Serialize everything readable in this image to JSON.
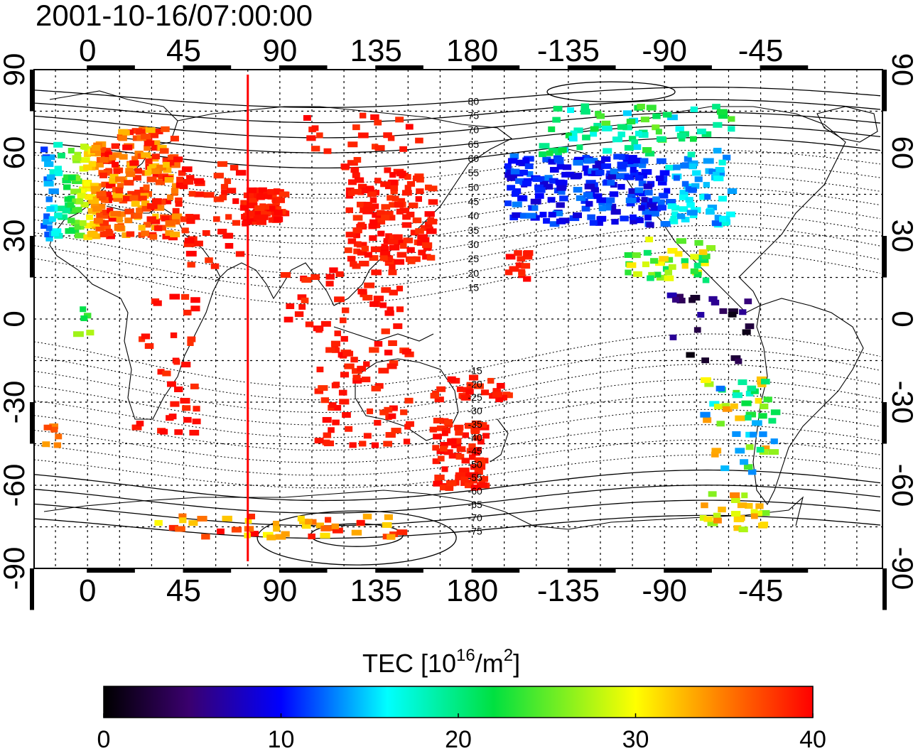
{
  "title": "2001-10-16/07:00:00",
  "map": {
    "x_ticks_top": [
      "0",
      "45",
      "90",
      "135",
      "180",
      "-135",
      "-90",
      "-45"
    ],
    "x_ticks_bottom": [
      "0",
      "45",
      "90",
      "135",
      "180",
      "-135",
      "-90",
      "-45"
    ],
    "y_ticks_left": [
      "90",
      "60",
      "30",
      "0",
      "-30",
      "-60",
      "-90"
    ],
    "y_ticks_right": [
      "90",
      "60",
      "30",
      "0",
      "-30",
      "-60",
      "-90"
    ],
    "longitude_range": [
      -25,
      372
    ],
    "latitude_range": [
      -90,
      90
    ],
    "grid": true,
    "magnetic_latitude_labels": [
      "80",
      "75",
      "70",
      "65",
      "60",
      "55",
      "50",
      "45",
      "40",
      "35",
      "30",
      "25",
      "20",
      "15",
      "-15",
      "-20",
      "-25",
      "-30",
      "-35",
      "-40",
      "-45",
      "-50",
      "-55",
      "-60",
      "-65",
      "-70",
      "-75"
    ],
    "meridian_marker_longitude": 75,
    "colors": {
      "high_tec": "#ff1a1a",
      "marker_line": "#ff0000"
    }
  },
  "colorbar": {
    "label_prefix": "TEC  [10",
    "label_exp": "16",
    "label_mid": "/m",
    "label_exp2": "2",
    "label_suffix": "]",
    "ticks": [
      "0",
      "10",
      "20",
      "30",
      "40"
    ],
    "range": [
      0,
      40
    ]
  }
}
